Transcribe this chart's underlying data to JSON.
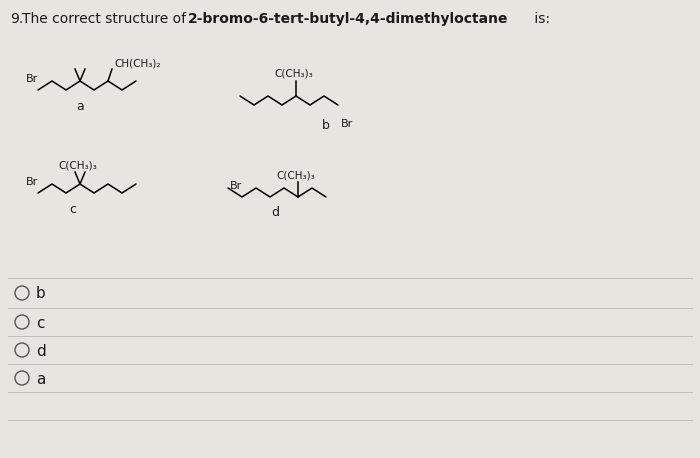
{
  "bg_color": "#e8e5e0",
  "line_color": "#c0bdb8",
  "text_color": "#1a1a1a",
  "options": [
    "b",
    "c",
    "d",
    "a"
  ],
  "struct_a_sub": "CH(CH₃)₂",
  "struct_bcd_sub": "C(CH₃)₃",
  "u": 14,
  "v": 9,
  "lw": 1.1
}
